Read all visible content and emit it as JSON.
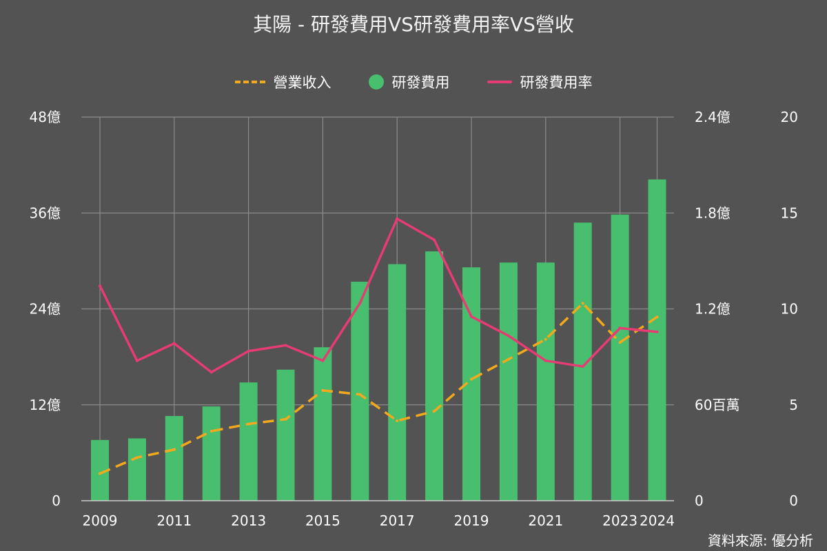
{
  "chart_data": {
    "type": "bar",
    "title": "其陽 - 研發費用VS研發費用率VS營收",
    "categories": [
      "2009",
      "2010",
      "2011",
      "2012",
      "2013",
      "2014",
      "2015",
      "2016",
      "2017",
      "2018",
      "2019",
      "2020",
      "2021",
      "2022",
      "2023",
      "2024"
    ],
    "x_tick_labels": [
      "2009",
      "2011",
      "2013",
      "2015",
      "2017",
      "2019",
      "2021",
      "2023",
      "2024"
    ],
    "legend": {
      "position": "top-center",
      "entries": [
        {
          "label": "營業收入",
          "style": "dashed-line",
          "color": "#f2a91d"
        },
        {
          "label": "研發費用",
          "style": "bar",
          "color": "#48bf6e"
        },
        {
          "label": "研發費用率",
          "style": "line",
          "color": "#e63c73"
        }
      ]
    },
    "axes": {
      "left": {
        "min": 0,
        "max": 48,
        "ticks": [
          0,
          12,
          24,
          36,
          48
        ],
        "tick_labels": [
          "0",
          "12億",
          "24億",
          "36億",
          "48億"
        ],
        "unit": "億"
      },
      "right_money": {
        "min": 0,
        "max": 2.4,
        "ticks": [
          0,
          0.6,
          1.2,
          1.8,
          2.4
        ],
        "tick_labels": [
          "0",
          "60百萬",
          "1.2億",
          "1.8億",
          "2.4億"
        ],
        "unit": "億"
      },
      "right_rate": {
        "min": 0,
        "max": 20,
        "ticks": [
          0,
          5,
          10,
          15,
          20
        ],
        "tick_labels": [
          "0",
          "5",
          "10",
          "15",
          "20"
        ]
      }
    },
    "grid": true,
    "series": [
      {
        "name": "營業收入",
        "type": "line",
        "axis": "left",
        "values": [
          3.4,
          5.4,
          6.4,
          8.7,
          9.6,
          10.2,
          13.8,
          13.3,
          10.0,
          11.2,
          15.2,
          17.7,
          20.2,
          24.7,
          19.8,
          23.0
        ]
      },
      {
        "name": "研發費用",
        "type": "bar",
        "axis": "right_money",
        "values": [
          0.38,
          0.39,
          0.53,
          0.59,
          0.74,
          0.82,
          0.96,
          1.37,
          1.48,
          1.56,
          1.46,
          1.49,
          1.49,
          1.74,
          1.79,
          2.01
        ]
      },
      {
        "name": "研發費用率",
        "type": "line",
        "axis": "right_rate",
        "values": [
          11.2,
          7.3,
          8.2,
          6.7,
          7.8,
          8.1,
          7.3,
          10.3,
          14.7,
          13.6,
          9.6,
          8.6,
          7.3,
          7.0,
          9.0,
          8.8
        ]
      }
    ]
  },
  "source_note": "資料來源: 優分析"
}
